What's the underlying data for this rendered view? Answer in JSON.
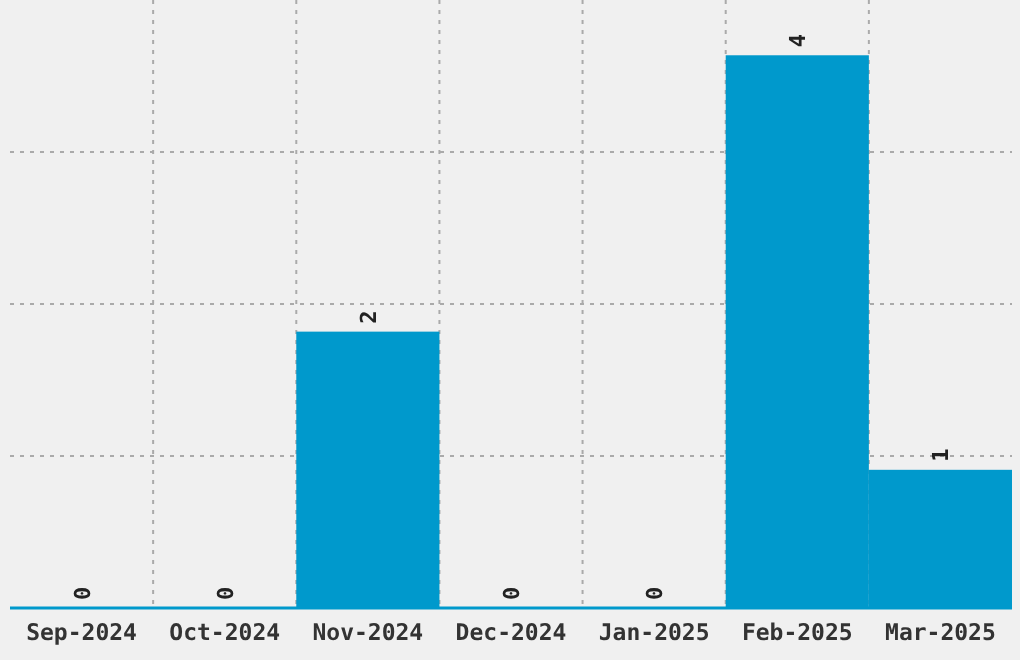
{
  "chart_data": {
    "type": "bar",
    "categories": [
      "Sep-2024",
      "Oct-2024",
      "Nov-2024",
      "Dec-2024",
      "Jan-2025",
      "Feb-2025",
      "Mar-2025"
    ],
    "values": [
      0,
      0,
      2,
      0,
      0,
      4,
      1
    ],
    "color": "#0099cc",
    "data_labels": true,
    "grid": true,
    "ylim": [
      0,
      4.4
    ],
    "yticks": [
      {
        "value": 1.1,
        "label": null
      },
      {
        "value": 2.2,
        "label": null
      },
      {
        "value": 3.3,
        "label": null
      }
    ],
    "tick_labels": "x"
  }
}
